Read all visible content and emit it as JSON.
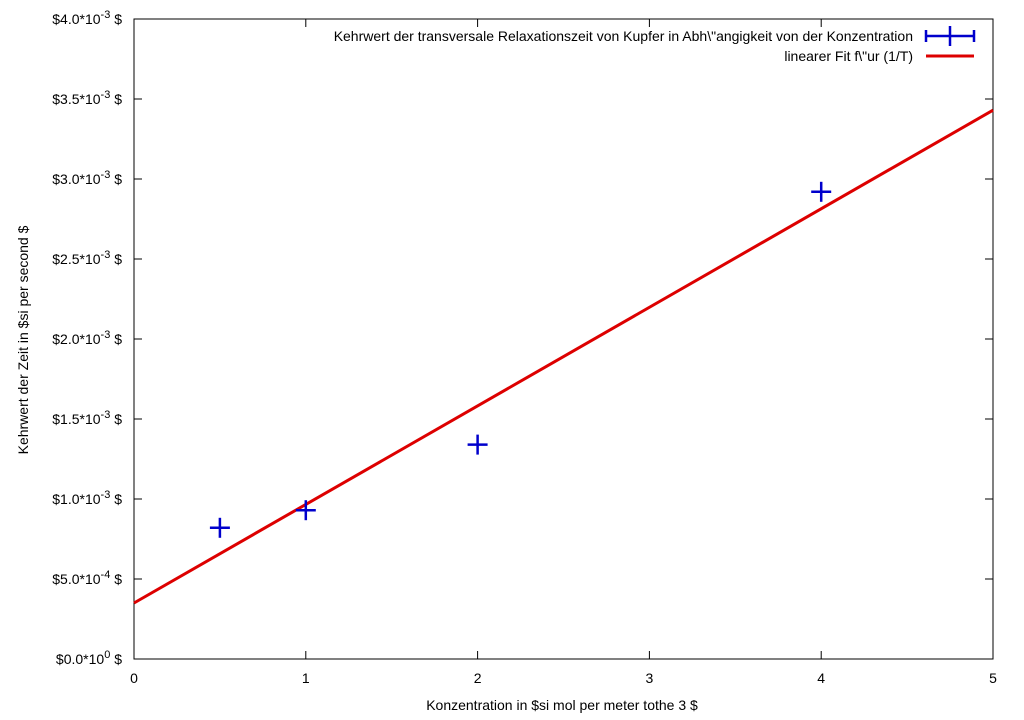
{
  "chart_data": {
    "type": "scatter",
    "xlabel": "Konzentration in  $si mol per meter tothe 3  $",
    "ylabel": "Kehrwert der Zeit in $si per second $",
    "xlim": [
      0,
      5
    ],
    "ylim": [
      0,
      0.004
    ],
    "grid": false,
    "legend_position": "top-right",
    "x_ticks": [
      {
        "value": 0,
        "label": "0"
      },
      {
        "value": 1,
        "label": "1"
      },
      {
        "value": 2,
        "label": "2"
      },
      {
        "value": 3,
        "label": "3"
      },
      {
        "value": 4,
        "label": "4"
      },
      {
        "value": 5,
        "label": "5"
      }
    ],
    "y_ticks": [
      {
        "value": 0,
        "label": "$0.0*10",
        "exp": "0",
        "suffix": " $"
      },
      {
        "value": 0.0005,
        "label": "$5.0*10",
        "exp": "-4",
        "suffix": " $"
      },
      {
        "value": 0.001,
        "label": "$1.0*10",
        "exp": "-3",
        "suffix": " $"
      },
      {
        "value": 0.0015,
        "label": "$1.5*10",
        "exp": "-3",
        "suffix": " $"
      },
      {
        "value": 0.002,
        "label": "$2.0*10",
        "exp": "-3",
        "suffix": " $"
      },
      {
        "value": 0.0025,
        "label": "$2.5*10",
        "exp": "-3",
        "suffix": " $"
      },
      {
        "value": 0.003,
        "label": "$3.0*10",
        "exp": "-3",
        "suffix": " $"
      },
      {
        "value": 0.0035,
        "label": "$3.5*10",
        "exp": "-3",
        "suffix": " $"
      },
      {
        "value": 0.004,
        "label": "$4.0*10",
        "exp": "-3",
        "suffix": " $"
      }
    ],
    "series": [
      {
        "name": "Kehrwert der transversale Relaxationszeit von Kupfer in Abh\\\"angigkeit von der Konzentration",
        "type": "scatter",
        "marker": "plus-errorbar",
        "color": "#0000cc",
        "points": [
          {
            "x": 0.5,
            "y": 0.00082
          },
          {
            "x": 1.0,
            "y": 0.00093
          },
          {
            "x": 2.0,
            "y": 0.00134
          },
          {
            "x": 4.0,
            "y": 0.00292
          }
        ]
      },
      {
        "name": "linearer Fit f\\\"ur (1/T)",
        "type": "line",
        "color": "#dd0000",
        "intercept": 0.00035,
        "slope": 0.000616,
        "x_range": [
          0,
          5
        ]
      }
    ]
  }
}
